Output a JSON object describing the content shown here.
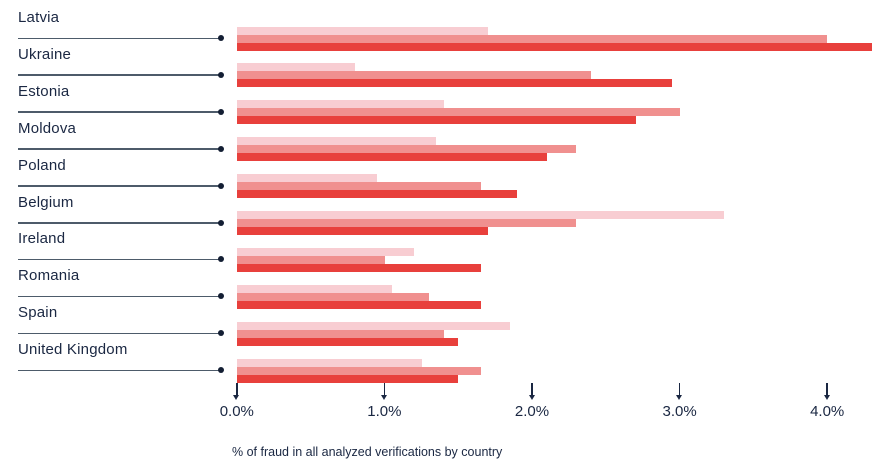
{
  "chart_data": {
    "type": "bar",
    "orientation": "horizontal",
    "caption": "% of fraud in all analyzed verifications by country",
    "xlabel": "% of fraud in all analyzed verifications by country",
    "categories": [
      "Latvia",
      "Ukraine",
      "Estonia",
      "Moldova",
      "Poland",
      "Belgium",
      "Ireland",
      "Romania",
      "Spain",
      "United Kingdom"
    ],
    "series": [
      {
        "name": "light-pink-bar",
        "color": "#f8cdd2",
        "values": [
          1.7,
          0.8,
          1.4,
          1.35,
          0.95,
          3.3,
          1.2,
          1.05,
          1.85,
          1.25
        ]
      },
      {
        "name": "medium-pink-bar",
        "color": "#f0908f",
        "values": [
          4.0,
          2.4,
          3.0,
          2.3,
          1.65,
          2.3,
          1.0,
          1.3,
          1.4,
          1.65
        ]
      },
      {
        "name": "dark-red-bar",
        "color": "#e8403c",
        "values": [
          4.3,
          2.95,
          2.7,
          2.1,
          1.9,
          1.7,
          1.65,
          1.65,
          1.5,
          1.5
        ]
      }
    ],
    "x_ticks": [
      "0.0%",
      "1.0%",
      "2.0%",
      "3.0%",
      "4.0%"
    ],
    "xlim": [
      0,
      4.37
    ],
    "grid": false,
    "legend": "none",
    "colors": {
      "label_text": "#1a2742",
      "axis_text": "#1a2742",
      "leader_line": "#4d5b6a",
      "leader_dot": "#131e33"
    }
  }
}
